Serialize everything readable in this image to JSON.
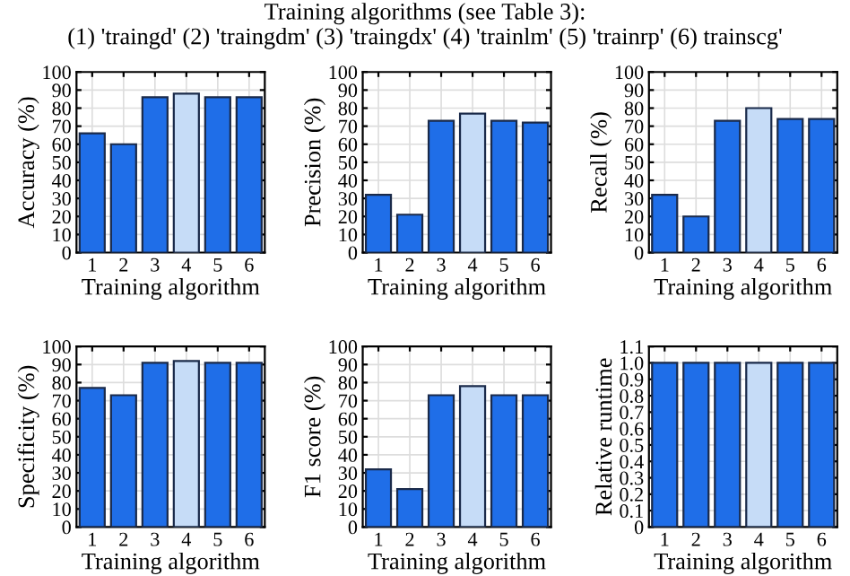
{
  "chart_data": [
    {
      "type": "bar",
      "title": "Training algorithms (see Table 3):\n(1) 'traingd' (2) 'traingdm' (3) 'traingdx' (4) 'trainlm' (5) 'trainrp' (6) trainscg'",
      "categories": [
        "1",
        "2",
        "3",
        "4",
        "5",
        "6"
      ],
      "values": [
        66,
        60,
        86,
        88,
        86,
        86
      ],
      "colors": [
        "#1f6ee8",
        "#1f6ee8",
        "#1f6ee8",
        "#c6dcf7",
        "#1f6ee8",
        "#1f6ee8"
      ],
      "xlabel": "Training algorithm",
      "ylabel": "Accuracy (%)",
      "ylim": [
        0,
        100
      ],
      "yticks": [
        0,
        10,
        20,
        30,
        40,
        50,
        60,
        70,
        80,
        90,
        100
      ],
      "grid": true
    },
    {
      "type": "bar",
      "categories": [
        "1",
        "2",
        "3",
        "4",
        "5",
        "6"
      ],
      "values": [
        32,
        21,
        73,
        77,
        73,
        72
      ],
      "colors": [
        "#1f6ee8",
        "#1f6ee8",
        "#1f6ee8",
        "#c6dcf7",
        "#1f6ee8",
        "#1f6ee8"
      ],
      "xlabel": "Training algorithm",
      "ylabel": "Precision (%)",
      "ylim": [
        0,
        100
      ],
      "yticks": [
        0,
        10,
        20,
        30,
        40,
        50,
        60,
        70,
        80,
        90,
        100
      ],
      "grid": true
    },
    {
      "type": "bar",
      "categories": [
        "1",
        "2",
        "3",
        "4",
        "5",
        "6"
      ],
      "values": [
        32,
        20,
        73,
        80,
        74,
        74
      ],
      "colors": [
        "#1f6ee8",
        "#1f6ee8",
        "#1f6ee8",
        "#c6dcf7",
        "#1f6ee8",
        "#1f6ee8"
      ],
      "xlabel": "Training algorithm",
      "ylabel": "Recall (%)",
      "ylim": [
        0,
        100
      ],
      "yticks": [
        0,
        10,
        20,
        30,
        40,
        50,
        60,
        70,
        80,
        90,
        100
      ],
      "grid": true
    },
    {
      "type": "bar",
      "categories": [
        "1",
        "2",
        "3",
        "4",
        "5",
        "6"
      ],
      "values": [
        77,
        73,
        91,
        92,
        91,
        91
      ],
      "colors": [
        "#1f6ee8",
        "#1f6ee8",
        "#1f6ee8",
        "#c6dcf7",
        "#1f6ee8",
        "#1f6ee8"
      ],
      "xlabel": "Training algorithm",
      "ylabel": "Specificity (%)",
      "ylim": [
        0,
        100
      ],
      "yticks": [
        0,
        10,
        20,
        30,
        40,
        50,
        60,
        70,
        80,
        90,
        100
      ],
      "grid": true
    },
    {
      "type": "bar",
      "categories": [
        "1",
        "2",
        "3",
        "4",
        "5",
        "6"
      ],
      "values": [
        32,
        21,
        73,
        78,
        73,
        73
      ],
      "colors": [
        "#1f6ee8",
        "#1f6ee8",
        "#1f6ee8",
        "#c6dcf7",
        "#1f6ee8",
        "#1f6ee8"
      ],
      "xlabel": "Training algorithm",
      "ylabel": "F1 score (%)",
      "ylim": [
        0,
        100
      ],
      "yticks": [
        0,
        10,
        20,
        30,
        40,
        50,
        60,
        70,
        80,
        90,
        100
      ],
      "grid": true
    },
    {
      "type": "bar",
      "categories": [
        "1",
        "2",
        "3",
        "4",
        "5",
        "6"
      ],
      "values": [
        1,
        1,
        1,
        1,
        1,
        1
      ],
      "colors": [
        "#1f6ee8",
        "#1f6ee8",
        "#1f6ee8",
        "#c6dcf7",
        "#1f6ee8",
        "#1f6ee8"
      ],
      "xlabel": "Training algorithm",
      "ylabel": "Relative runtime",
      "ylim": [
        0,
        1.1
      ],
      "yticks": [
        0,
        0.1,
        0.2,
        0.3,
        0.4,
        0.5,
        0.6,
        0.7,
        0.8,
        0.9,
        {
          "value": 1,
          "label": "1.0"
        },
        1.1
      ],
      "grid": true
    }
  ]
}
